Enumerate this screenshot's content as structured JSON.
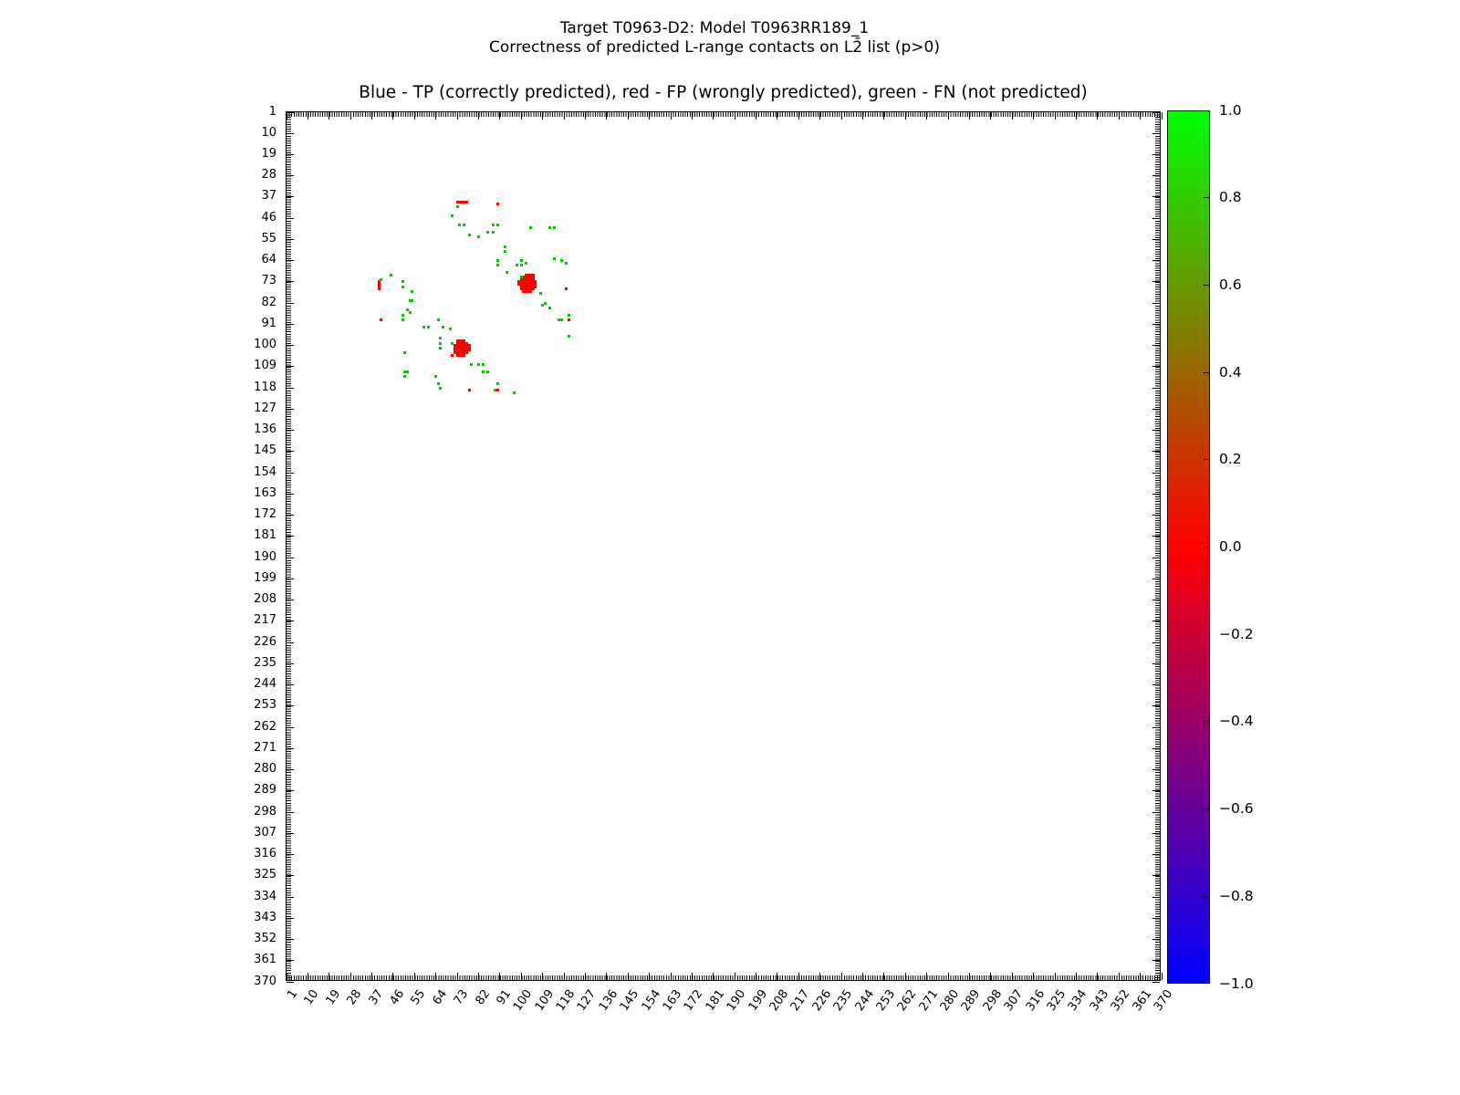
{
  "figure": {
    "suptitle_line1": "Target T0963-D2: Model T0963RR189_1",
    "suptitle_line2": "Correctness of predicted L-range contacts on L2̄ list (p>0)",
    "axes_title": "Blue - TP (correctly predicted), red - FP (wrongly predicted), green - FN (not predicted)",
    "background_color": "#ffffff"
  },
  "chart_data": {
    "type": "scatter",
    "title": "Blue - TP (correctly predicted), red - FP (wrongly predicted), green - FN (not predicted)",
    "xlabel": "",
    "ylabel": "",
    "grid": false,
    "xlim": [
      1,
      370
    ],
    "ylim": [
      1,
      370
    ],
    "y_axis_inverted": true,
    "x_ticks": [
      1,
      10,
      19,
      28,
      37,
      46,
      55,
      64,
      73,
      82,
      91,
      100,
      109,
      118,
      127,
      136,
      145,
      154,
      163,
      172,
      181,
      190,
      199,
      208,
      217,
      226,
      235,
      244,
      253,
      262,
      271,
      280,
      289,
      298,
      307,
      316,
      325,
      334,
      343,
      352,
      361,
      370
    ],
    "y_ticks": [
      1,
      10,
      19,
      28,
      37,
      46,
      55,
      64,
      73,
      82,
      91,
      100,
      109,
      118,
      127,
      136,
      145,
      154,
      163,
      172,
      181,
      190,
      199,
      208,
      217,
      226,
      235,
      244,
      253,
      262,
      271,
      280,
      289,
      298,
      307,
      316,
      325,
      334,
      343,
      352,
      361,
      370
    ],
    "colors": {
      "tp": "#0000ff",
      "fp": "#ff0000",
      "fn": "#00cc00"
    },
    "series": [
      {
        "name": "TP (correctly predicted)",
        "color_key": "tp",
        "points": []
      },
      {
        "name": "FP (wrongly predicted)",
        "color_key": "fp",
        "points": [
          [
            73,
            39
          ],
          [
            74,
            39
          ],
          [
            75,
            39
          ],
          [
            76,
            39
          ],
          [
            77,
            39
          ],
          [
            90,
            40
          ],
          [
            40,
            73
          ],
          [
            40,
            74
          ],
          [
            40,
            75
          ],
          [
            40,
            76
          ],
          [
            41,
            89
          ],
          [
            119,
            76
          ],
          [
            120,
            89
          ],
          [
            78,
            119
          ],
          [
            90,
            119
          ],
          [
            102,
            70
          ],
          [
            103,
            70
          ],
          [
            104,
            70
          ],
          [
            105,
            70
          ],
          [
            101,
            71
          ],
          [
            102,
            71
          ],
          [
            103,
            71
          ],
          [
            104,
            71
          ],
          [
            105,
            71
          ],
          [
            100,
            72
          ],
          [
            101,
            72
          ],
          [
            102,
            72
          ],
          [
            103,
            72
          ],
          [
            104,
            72
          ],
          [
            105,
            72
          ],
          [
            99,
            73
          ],
          [
            100,
            73
          ],
          [
            101,
            73
          ],
          [
            102,
            73
          ],
          [
            103,
            73
          ],
          [
            104,
            73
          ],
          [
            105,
            73
          ],
          [
            106,
            73
          ],
          [
            99,
            74
          ],
          [
            100,
            74
          ],
          [
            101,
            74
          ],
          [
            102,
            74
          ],
          [
            103,
            74
          ],
          [
            104,
            74
          ],
          [
            105,
            74
          ],
          [
            106,
            74
          ],
          [
            100,
            75
          ],
          [
            101,
            75
          ],
          [
            102,
            75
          ],
          [
            103,
            75
          ],
          [
            104,
            75
          ],
          [
            105,
            75
          ],
          [
            106,
            75
          ],
          [
            100,
            76
          ],
          [
            101,
            76
          ],
          [
            102,
            76
          ],
          [
            103,
            76
          ],
          [
            104,
            76
          ],
          [
            105,
            76
          ],
          [
            101,
            77
          ],
          [
            102,
            77
          ],
          [
            103,
            77
          ],
          [
            104,
            77
          ],
          [
            73,
            98
          ],
          [
            74,
            98
          ],
          [
            75,
            98
          ],
          [
            76,
            98
          ],
          [
            73,
            99
          ],
          [
            74,
            99
          ],
          [
            75,
            99
          ],
          [
            76,
            99
          ],
          [
            77,
            99
          ],
          [
            72,
            100
          ],
          [
            73,
            100
          ],
          [
            74,
            100
          ],
          [
            75,
            100
          ],
          [
            76,
            100
          ],
          [
            77,
            100
          ],
          [
            78,
            100
          ],
          [
            72,
            101
          ],
          [
            73,
            101
          ],
          [
            74,
            101
          ],
          [
            75,
            101
          ],
          [
            76,
            101
          ],
          [
            77,
            101
          ],
          [
            78,
            101
          ],
          [
            72,
            102
          ],
          [
            73,
            102
          ],
          [
            74,
            102
          ],
          [
            75,
            102
          ],
          [
            76,
            102
          ],
          [
            77,
            102
          ],
          [
            78,
            102
          ],
          [
            72,
            103
          ],
          [
            73,
            103
          ],
          [
            74,
            103
          ],
          [
            75,
            103
          ],
          [
            76,
            103
          ],
          [
            77,
            103
          ],
          [
            71,
            104
          ],
          [
            73,
            104
          ],
          [
            74,
            104
          ],
          [
            75,
            104
          ],
          [
            76,
            104
          ]
        ]
      },
      {
        "name": "FN (not predicted)",
        "color_key": "fn",
        "points": [
          [
            73,
            41
          ],
          [
            71,
            45
          ],
          [
            74,
            49
          ],
          [
            76,
            49
          ],
          [
            88,
            49
          ],
          [
            90,
            49
          ],
          [
            104,
            50
          ],
          [
            112,
            50
          ],
          [
            114,
            50
          ],
          [
            86,
            52
          ],
          [
            88,
            52
          ],
          [
            78,
            53
          ],
          [
            82,
            54
          ],
          [
            93,
            58
          ],
          [
            93,
            60
          ],
          [
            114,
            63
          ],
          [
            100,
            64
          ],
          [
            117,
            64
          ],
          [
            90,
            64
          ],
          [
            102,
            65
          ],
          [
            119,
            65
          ],
          [
            90,
            66
          ],
          [
            98,
            66
          ],
          [
            100,
            66
          ],
          [
            94,
            69
          ],
          [
            100,
            71
          ],
          [
            108,
            78
          ],
          [
            110,
            82
          ],
          [
            109,
            83
          ],
          [
            112,
            84
          ],
          [
            120,
            87
          ],
          [
            116,
            89
          ],
          [
            117,
            89
          ],
          [
            120,
            96
          ],
          [
            45,
            70
          ],
          [
            41,
            72
          ],
          [
            50,
            73
          ],
          [
            50,
            75
          ],
          [
            54,
            77
          ],
          [
            53,
            81
          ],
          [
            54,
            81
          ],
          [
            52,
            85
          ],
          [
            53,
            86
          ],
          [
            50,
            87
          ],
          [
            50,
            89
          ],
          [
            65,
            89
          ],
          [
            59,
            92
          ],
          [
            61,
            92
          ],
          [
            67,
            92
          ],
          [
            70,
            93
          ],
          [
            66,
            97
          ],
          [
            66,
            99
          ],
          [
            71,
            99
          ],
          [
            66,
            101
          ],
          [
            51,
            103
          ],
          [
            79,
            108
          ],
          [
            82,
            108
          ],
          [
            84,
            108
          ],
          [
            84,
            111
          ],
          [
            86,
            111
          ],
          [
            51,
            111
          ],
          [
            52,
            111
          ],
          [
            51,
            113
          ],
          [
            64,
            113
          ],
          [
            65,
            116
          ],
          [
            66,
            118
          ],
          [
            90,
            116
          ],
          [
            89,
            119
          ],
          [
            97,
            120
          ]
        ]
      }
    ],
    "colorbar": {
      "min": -1.0,
      "max": 1.0,
      "tick_values": [
        1.0,
        0.8,
        0.6,
        0.4,
        0.2,
        0.0,
        -0.2,
        -0.4,
        -0.6,
        -0.8,
        -1.0
      ],
      "tick_labels": [
        "1.0",
        "0.8",
        "0.6",
        "0.4",
        "0.2",
        "0.0",
        "−0.2",
        "−0.4",
        "−0.6",
        "−0.8",
        "−1.0"
      ],
      "top_color": "#00ff00",
      "mid_color": "#ff0000",
      "bottom_color": "#0000ff"
    }
  }
}
